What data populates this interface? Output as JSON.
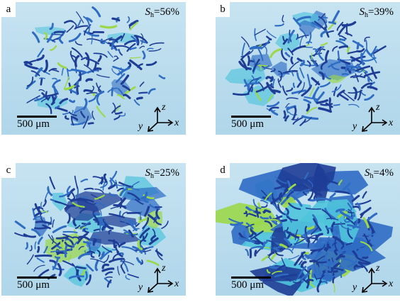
{
  "figure": {
    "panels": [
      {
        "letter": "a",
        "saturation_symbol": "S",
        "saturation_sub": "h",
        "saturation_value": "=56%",
        "scale_label": "500 μm",
        "density": 0.45,
        "sheetiness": 0.05
      },
      {
        "letter": "b",
        "saturation_symbol": "S",
        "saturation_sub": "h",
        "saturation_value": "=39%",
        "scale_label": "500 μm",
        "density": 0.7,
        "sheetiness": 0.25
      },
      {
        "letter": "c",
        "saturation_symbol": "S",
        "saturation_sub": "h",
        "saturation_value": "=25%",
        "scale_label": "500 μm",
        "density": 0.85,
        "sheetiness": 0.45
      },
      {
        "letter": "d",
        "saturation_symbol": "S",
        "saturation_sub": "h",
        "saturation_value": "=4%",
        "scale_label": "500 μm",
        "density": 1.0,
        "sheetiness": 1.0
      }
    ],
    "axis_labels": {
      "x": "x",
      "y": "y",
      "z": "z"
    },
    "colors": {
      "background": "#bcdcee",
      "strand_dark": "#1e3d96",
      "strand_mid": "#2f6cc4",
      "highlight": "#9ad84a",
      "cyan": "#4fc4dc"
    }
  }
}
